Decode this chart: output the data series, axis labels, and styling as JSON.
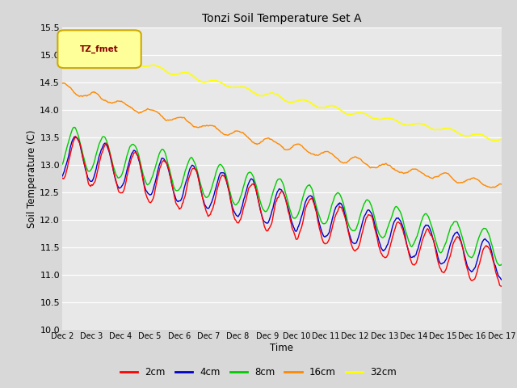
{
  "title": "Tonzi Soil Temperature Set A",
  "xlabel": "Time",
  "ylabel": "Soil Temperature (C)",
  "ylim": [
    10.0,
    15.5
  ],
  "yticks": [
    10.0,
    10.5,
    11.0,
    11.5,
    12.0,
    12.5,
    13.0,
    13.5,
    14.0,
    14.5,
    15.0,
    15.5
  ],
  "x_labels": [
    "Dec 2",
    "Dec 3",
    "Dec 4",
    "Dec 5",
    "Dec 6",
    "Dec 7",
    "Dec 8",
    "Dec 9",
    "Dec 10",
    "Dec 11",
    "Dec 12",
    "Dec 13",
    "Dec 14",
    "Dec 15",
    "Dec 16",
    "Dec 17"
  ],
  "series": {
    "2cm": {
      "color": "#ff0000",
      "linewidth": 1.0
    },
    "4cm": {
      "color": "#0000cc",
      "linewidth": 1.0
    },
    "8cm": {
      "color": "#00cc00",
      "linewidth": 1.0
    },
    "16cm": {
      "color": "#ff8800",
      "linewidth": 1.0
    },
    "32cm": {
      "color": "#ffff00",
      "linewidth": 1.2
    }
  },
  "legend_label": "TZ_fmet",
  "legend_box_facecolor": "#ffff99",
  "legend_box_edgecolor": "#ccaa00",
  "legend_text_color": "#880000",
  "fig_facecolor": "#d8d8d8",
  "plot_facecolor": "#e8e8e8",
  "grid_color": "#ffffff",
  "n_points": 720,
  "days": 15
}
